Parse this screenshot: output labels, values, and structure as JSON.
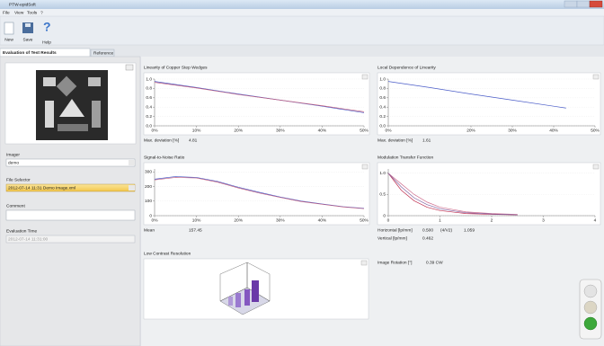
{
  "window": {
    "title": "PTW-epidSoft"
  },
  "menu": [
    "File",
    "View",
    "Tools",
    "?"
  ],
  "toolbar": [
    "New",
    "Save",
    "Help"
  ],
  "tabs": [
    "Evaluation of Test Results",
    "Reference"
  ],
  "sidebar": {
    "imager_label": "Imager",
    "imager_value": "demo",
    "file_label": "File Selector",
    "file_value": "2012-07-14 11:31 Demo Image.xml",
    "comment_label": "Comment",
    "time_label": "Evaluation Time",
    "time_value": "2012-07-14 11:31:00"
  },
  "charts": [
    {
      "title": "Linearity of Copper Step Wedges",
      "xlim": [
        0,
        50
      ],
      "ylim": [
        0,
        1
      ],
      "xticks": [
        {
          "value": 0,
          "label": "0%"
        },
        {
          "value": 10,
          "label": "10%"
        },
        {
          "value": 20,
          "label": "20%"
        },
        {
          "value": 30,
          "label": "30%"
        },
        {
          "value": 40,
          "label": "40%"
        },
        {
          "value": 50,
          "label": "50%"
        }
      ],
      "yticks": [
        {
          "value": 0,
          "label": "0.0"
        },
        {
          "value": 0.2,
          "label": "0.2"
        },
        {
          "value": 0.4,
          "label": "0.4"
        },
        {
          "value": 0.6,
          "label": "0.6"
        },
        {
          "value": 0.8,
          "label": "0.8"
        },
        {
          "value": 1,
          "label": "1.0"
        }
      ],
      "series": [
        {
          "color": "#4a5cc8",
          "x": [
            0,
            10,
            20,
            30,
            40,
            50
          ],
          "values": [
            0.95,
            0.82,
            0.68,
            0.55,
            0.42,
            0.28
          ]
        },
        {
          "color": "#c06080",
          "x": [
            0,
            10,
            20,
            30,
            40,
            50
          ],
          "values": [
            0.93,
            0.81,
            0.67,
            0.55,
            0.43,
            0.3
          ]
        }
      ],
      "stats": [
        {
          "label": "Max. deviation [%]",
          "value": "4.81"
        }
      ]
    },
    {
      "title": "Local Dependence of Linearity",
      "xlim": [
        0,
        50
      ],
      "ylim": [
        0,
        1
      ],
      "xticks": [
        {
          "value": 0,
          "label": "0%"
        },
        {
          "value": 20,
          "label": "20%"
        },
        {
          "value": 30,
          "label": "30%"
        },
        {
          "value": 40,
          "label": "40%"
        },
        {
          "value": 50,
          "label": "50%"
        }
      ],
      "yticks": [
        {
          "value": 0,
          "label": "0.0"
        },
        {
          "value": 0.2,
          "label": "0.2"
        },
        {
          "value": 0.4,
          "label": "0.4"
        },
        {
          "value": 0.6,
          "label": "0.6"
        },
        {
          "value": 0.8,
          "label": "0.8"
        },
        {
          "value": 1,
          "label": "1.0"
        }
      ],
      "series": [
        {
          "color": "#4a5cc8",
          "x": [
            0,
            10,
            20,
            30,
            40,
            43
          ],
          "values": [
            0.95,
            0.82,
            0.68,
            0.55,
            0.42,
            0.38
          ]
        }
      ],
      "stats": [
        {
          "label": "Max. deviation [%]",
          "value": "1.61"
        }
      ]
    },
    {
      "title": "Signal-to-Noise Ratio",
      "xlim": [
        0,
        50
      ],
      "ylim": [
        0,
        320
      ],
      "xticks": [
        {
          "value": 0,
          "label": "0%"
        },
        {
          "value": 10,
          "label": "10%"
        },
        {
          "value": 20,
          "label": "20%"
        },
        {
          "value": 30,
          "label": "30%"
        },
        {
          "value": 40,
          "label": "40%"
        },
        {
          "value": 50,
          "label": "50%"
        }
      ],
      "yticks": [
        0,
        100,
        200,
        300
      ],
      "series": [
        {
          "color": "#4a5cc8",
          "x": [
            0,
            5,
            10,
            15,
            20,
            25,
            30,
            35,
            40,
            45,
            50
          ],
          "values": [
            250,
            268,
            262,
            235,
            195,
            160,
            128,
            100,
            80,
            62,
            50
          ]
        },
        {
          "color": "#c06080",
          "x": [
            0,
            5,
            10,
            15,
            20,
            25,
            30,
            35,
            40,
            45,
            50
          ],
          "values": [
            245,
            262,
            258,
            230,
            190,
            155,
            125,
            97,
            78,
            60,
            48
          ]
        }
      ],
      "stats": [
        {
          "label": "Mean",
          "value": "157.45"
        }
      ]
    },
    {
      "title": "Modulation Transfer Function",
      "xlim": [
        0,
        4
      ],
      "ylim": [
        0,
        1.1
      ],
      "xticks": [
        0,
        1,
        2,
        3,
        4
      ],
      "yticks": [
        0,
        0.5,
        {
          "value": 1,
          "label": "1.0"
        }
      ],
      "series": [
        {
          "color": "#c03050",
          "x": [
            0,
            0.25,
            0.5,
            0.75,
            1,
            1.5,
            2,
            2.5
          ],
          "values": [
            1,
            0.6,
            0.35,
            0.2,
            0.12,
            0.05,
            0.03,
            0.02
          ]
        },
        {
          "color": "#d07090",
          "x": [
            0,
            0.25,
            0.5,
            0.75,
            1,
            1.5,
            2,
            2.5
          ],
          "values": [
            1,
            0.75,
            0.5,
            0.32,
            0.2,
            0.09,
            0.05,
            0.03
          ]
        },
        {
          "color": "#8060a0",
          "x": [
            0,
            0.25,
            0.5,
            0.75,
            1,
            1.5,
            2,
            2.5
          ],
          "values": [
            1,
            0.68,
            0.42,
            0.26,
            0.16,
            0.07,
            0.04,
            0.02
          ]
        }
      ],
      "stats": [
        {
          "label": "Horizontal [lp/mm]",
          "value": "0.500",
          "extra_label": "(4/V2)",
          "extra_value": "1.059"
        },
        {
          "label": "Vertical [lp/mm]",
          "value": "0.462"
        }
      ]
    }
  ],
  "low_contrast": {
    "title": "Low Contrast Resolution"
  },
  "rotation": {
    "label": "Image Rotation [°]",
    "value": "0.39 CW"
  }
}
